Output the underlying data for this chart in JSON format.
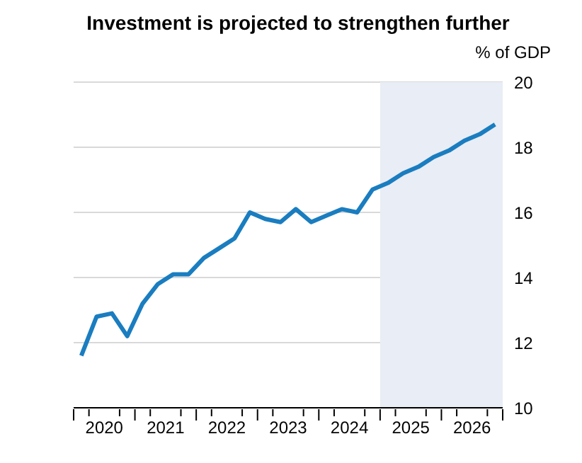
{
  "chart_data": {
    "type": "line",
    "title": "Investment is projected to strengthen further",
    "ylabel": "% of GDP",
    "x": [
      2020.125,
      2020.375,
      2020.625,
      2020.875,
      2021.125,
      2021.375,
      2021.625,
      2021.875,
      2022.125,
      2022.375,
      2022.625,
      2022.875,
      2023.125,
      2023.375,
      2023.625,
      2023.875,
      2024.125,
      2024.375,
      2024.625,
      2024.875,
      2025.125,
      2025.375,
      2025.625,
      2025.875,
      2026.125,
      2026.375,
      2026.625,
      2026.875
    ],
    "series": [
      {
        "color": "#1a7dc0",
        "values": [
          11.6,
          12.8,
          12.9,
          12.2,
          13.2,
          13.8,
          14.1,
          14.1,
          14.6,
          14.9,
          15.2,
          16.0,
          15.8,
          15.7,
          16.1,
          15.7,
          15.9,
          16.1,
          16.0,
          16.7,
          16.9,
          17.2,
          17.4,
          17.7,
          17.9,
          18.2,
          18.4,
          18.7
        ]
      }
    ],
    "xlim": [
      2020,
      2027
    ],
    "xticks": [
      {
        "value": 2020,
        "label": null
      },
      {
        "value": 2020.25,
        "label": null
      },
      {
        "value": 2020.5,
        "label": "2020"
      },
      {
        "value": 2020.75,
        "label": null
      },
      {
        "value": 2021,
        "label": null
      },
      {
        "value": 2021.25,
        "label": null
      },
      {
        "value": 2021.5,
        "label": "2021"
      },
      {
        "value": 2021.75,
        "label": null
      },
      {
        "value": 2022,
        "label": null
      },
      {
        "value": 2022.25,
        "label": null
      },
      {
        "value": 2022.5,
        "label": "2022"
      },
      {
        "value": 2022.75,
        "label": null
      },
      {
        "value": 2023,
        "label": null
      },
      {
        "value": 2023.25,
        "label": null
      },
      {
        "value": 2023.5,
        "label": "2023"
      },
      {
        "value": 2023.75,
        "label": null
      },
      {
        "value": 2024,
        "label": null
      },
      {
        "value": 2024.25,
        "label": null
      },
      {
        "value": 2024.5,
        "label": "2024"
      },
      {
        "value": 2024.75,
        "label": null
      },
      {
        "value": 2025,
        "label": null
      },
      {
        "value": 2025.25,
        "label": null
      },
      {
        "value": 2025.5,
        "label": "2025"
      },
      {
        "value": 2025.75,
        "label": null
      },
      {
        "value": 2026,
        "label": null
      },
      {
        "value": 2026.25,
        "label": null
      },
      {
        "value": 2026.5,
        "label": "2026"
      },
      {
        "value": 2026.75,
        "label": null
      },
      {
        "value": 2027,
        "label": null
      }
    ],
    "ylim": [
      10,
      20
    ],
    "yticks": [
      10,
      12,
      14,
      16,
      18,
      20
    ],
    "bands": [
      {
        "axis": "x",
        "from": 2025,
        "to": 2027,
        "color": "#e9edf5"
      }
    ],
    "grid": "y",
    "marker": "none",
    "line_style": "solid"
  }
}
